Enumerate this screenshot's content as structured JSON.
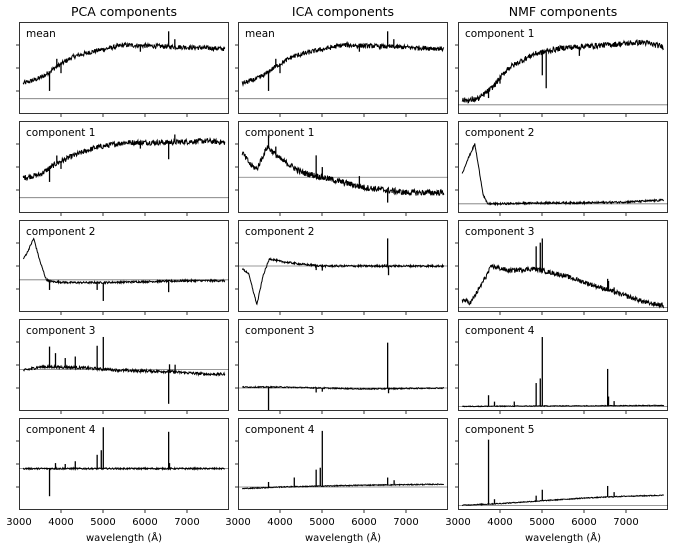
{
  "chart_data": {
    "type": "line",
    "columns": [
      {
        "title": "PCA components",
        "panels": [
          "mean",
          "component 1",
          "component 2",
          "component 3",
          "component 4"
        ]
      },
      {
        "title": "ICA components",
        "panels": [
          "mean",
          "component 1",
          "component 2",
          "component 3",
          "component 4"
        ]
      },
      {
        "title": "NMF components",
        "panels": [
          "component 1",
          "component 2",
          "component 3",
          "component 4",
          "component 5"
        ]
      }
    ],
    "xlabel": "wavelength (Å)",
    "xlim": [
      3000,
      8000
    ],
    "xticks": [
      3000,
      4000,
      5000,
      6000,
      7000
    ],
    "yticklabels_shown": false,
    "grid": false,
    "legend": "none",
    "line_color": "#000000",
    "zero_line_color": "#777777",
    "spectra": [
      [
        {
          "y0": 0,
          "ylim": [
            -0.2,
            1.0
          ],
          "continuum": [
            [
              3000,
              0.18
            ],
            [
              3400,
              0.25
            ],
            [
              3600,
              0.3
            ],
            [
              3900,
              0.42
            ],
            [
              4300,
              0.55
            ],
            [
              4800,
              0.62
            ],
            [
              5500,
              0.7
            ],
            [
              6500,
              0.68
            ],
            [
              7500,
              0.66
            ],
            [
              7900,
              0.65
            ]
          ],
          "lines": [
            [
              3727,
              -0.25
            ],
            [
              3900,
              0.1
            ],
            [
              4000,
              -0.12
            ],
            [
              5890,
              -0.08
            ],
            [
              6563,
              0.2
            ],
            [
              6710,
              0.1
            ]
          ],
          "noise": 0.03
        },
        {
          "y0": 0,
          "ylim": [
            -0.2,
            1.0
          ],
          "continuum": [
            [
              3000,
              0.25
            ],
            [
              3500,
              0.3
            ],
            [
              3900,
              0.45
            ],
            [
              4300,
              0.55
            ],
            [
              4800,
              0.65
            ],
            [
              5500,
              0.72
            ],
            [
              6500,
              0.72
            ],
            [
              7500,
              0.74
            ],
            [
              7900,
              0.72
            ]
          ],
          "lines": [
            [
              3727,
              -0.18
            ],
            [
              3900,
              0.1
            ],
            [
              4000,
              -0.1
            ],
            [
              5890,
              -0.08
            ],
            [
              6563,
              -0.22
            ],
            [
              6710,
              0.1
            ]
          ],
          "noise": 0.035
        },
        {
          "y0": 0,
          "ylim": [
            -0.35,
            0.65
          ],
          "continuum": [
            [
              3000,
              0.15
            ],
            [
              3200,
              0.3
            ],
            [
              3350,
              0.45
            ],
            [
              3500,
              0.2
            ],
            [
              3650,
              0.0
            ],
            [
              3800,
              -0.02
            ],
            [
              4200,
              -0.03
            ],
            [
              5000,
              -0.03
            ],
            [
              6000,
              -0.02
            ],
            [
              7000,
              -0.01
            ],
            [
              7900,
              -0.01
            ]
          ],
          "lines": [
            [
              3727,
              -0.1
            ],
            [
              4861,
              -0.08
            ],
            [
              5007,
              -0.2
            ],
            [
              6563,
              -0.12
            ]
          ],
          "noise": 0.01
        },
        {
          "y0": 0,
          "ylim": [
            -0.45,
            0.55
          ],
          "continuum": [
            [
              3000,
              -0.02
            ],
            [
              3500,
              0.03
            ],
            [
              3800,
              0.03
            ],
            [
              4500,
              0.02
            ],
            [
              5500,
              -0.01
            ],
            [
              6500,
              -0.02
            ],
            [
              7500,
              -0.05
            ],
            [
              7900,
              -0.05
            ]
          ],
          "lines": [
            [
              3727,
              0.22
            ],
            [
              3869,
              0.15
            ],
            [
              4101,
              0.1
            ],
            [
              4340,
              0.12
            ],
            [
              4861,
              0.25
            ],
            [
              5007,
              0.35
            ],
            [
              6563,
              -0.35
            ],
            [
              6584,
              0.08
            ],
            [
              6717,
              0.08
            ]
          ],
          "noise": 0.015
        },
        {
          "y0": 0,
          "ylim": [
            -0.45,
            0.55
          ],
          "continuum": [
            [
              3000,
              0.0
            ],
            [
              7900,
              0.0
            ]
          ],
          "lines": [
            [
              3727,
              -0.3
            ],
            [
              3869,
              0.06
            ],
            [
              4101,
              0.05
            ],
            [
              4340,
              0.08
            ],
            [
              4861,
              0.15
            ],
            [
              4959,
              0.2
            ],
            [
              5007,
              0.45
            ],
            [
              6563,
              0.4
            ],
            [
              6584,
              0.06
            ]
          ],
          "noise": 0.008
        }
      ],
      [
        {
          "y0": 0,
          "ylim": [
            -0.2,
            1.0
          ],
          "continuum": [
            [
              3000,
              0.18
            ],
            [
              3400,
              0.25
            ],
            [
              3600,
              0.3
            ],
            [
              3900,
              0.42
            ],
            [
              4300,
              0.55
            ],
            [
              4800,
              0.62
            ],
            [
              5500,
              0.7
            ],
            [
              6500,
              0.68
            ],
            [
              7500,
              0.66
            ],
            [
              7900,
              0.65
            ]
          ],
          "lines": [
            [
              3727,
              -0.25
            ],
            [
              3900,
              0.1
            ],
            [
              4000,
              -0.12
            ],
            [
              5890,
              -0.08
            ],
            [
              6563,
              0.2
            ],
            [
              6710,
              0.1
            ]
          ],
          "noise": 0.03
        },
        {
          "y0": 0,
          "ylim": [
            -0.35,
            0.55
          ],
          "continuum": [
            [
              3000,
              0.3
            ],
            [
              3300,
              0.12
            ],
            [
              3450,
              0.08
            ],
            [
              3700,
              0.3
            ],
            [
              4000,
              0.18
            ],
            [
              4500,
              0.05
            ],
            [
              5000,
              0.0
            ],
            [
              6000,
              -0.1
            ],
            [
              7000,
              -0.15
            ],
            [
              7900,
              -0.15
            ]
          ],
          "lines": [
            [
              3727,
              0.12
            ],
            [
              3900,
              0.08
            ],
            [
              4861,
              0.2
            ],
            [
              5007,
              0.1
            ],
            [
              5890,
              0.1
            ],
            [
              6563,
              -0.12
            ]
          ],
          "noise": 0.03
        },
        {
          "y0": 0,
          "ylim": [
            -0.5,
            0.5
          ],
          "continuum": [
            [
              3000,
              0.0
            ],
            [
              3250,
              -0.08
            ],
            [
              3450,
              -0.42
            ],
            [
              3600,
              -0.1
            ],
            [
              3750,
              0.08
            ],
            [
              4000,
              0.05
            ],
            [
              4500,
              0.02
            ],
            [
              5000,
              0.0
            ],
            [
              6000,
              0.0
            ],
            [
              7000,
              0.0
            ],
            [
              7900,
              0.0
            ]
          ],
          "lines": [
            [
              4861,
              -0.05
            ],
            [
              5007,
              -0.05
            ],
            [
              6563,
              0.3
            ],
            [
              6584,
              -0.1
            ]
          ],
          "noise": 0.01
        },
        {
          "y0": 0,
          "ylim": [
            -0.25,
            0.75
          ],
          "continuum": [
            [
              3000,
              0.01
            ],
            [
              4000,
              0.01
            ],
            [
              5000,
              0.0
            ],
            [
              6000,
              -0.01
            ],
            [
              7900,
              0.0
            ]
          ],
          "lines": [
            [
              3727,
              -0.25
            ],
            [
              4861,
              -0.05
            ],
            [
              5007,
              -0.04
            ],
            [
              6563,
              0.5
            ],
            [
              6584,
              -0.05
            ]
          ],
          "noise": 0.006
        },
        {
          "y0": 0,
          "ylim": [
            -0.25,
            0.75
          ],
          "continuum": [
            [
              3000,
              -0.02
            ],
            [
              4000,
              0.0
            ],
            [
              5000,
              0.01
            ],
            [
              6000,
              0.02
            ],
            [
              7900,
              0.03
            ]
          ],
          "lines": [
            [
              3727,
              0.06
            ],
            [
              4340,
              0.1
            ],
            [
              4861,
              0.18
            ],
            [
              4959,
              0.2
            ],
            [
              5007,
              0.6
            ],
            [
              6563,
              0.08
            ],
            [
              6717,
              0.05
            ]
          ],
          "noise": 0.005
        }
      ],
      [
        {
          "y0": 0,
          "ylim": [
            -0.1,
            0.9
          ],
          "continuum": [
            [
              3000,
              0.05
            ],
            [
              3300,
              0.05
            ],
            [
              3500,
              0.07
            ],
            [
              3800,
              0.18
            ],
            [
              4200,
              0.4
            ],
            [
              4800,
              0.55
            ],
            [
              5500,
              0.62
            ],
            [
              6500,
              0.65
            ],
            [
              7400,
              0.68
            ],
            [
              7900,
              0.63
            ]
          ],
          "lines": [
            [
              3727,
              -0.08
            ],
            [
              4000,
              -0.06
            ],
            [
              5007,
              -0.25
            ],
            [
              5100,
              -0.4
            ],
            [
              5890,
              -0.1
            ]
          ],
          "noise": 0.03
        },
        {
          "y0": 0,
          "ylim": [
            -0.1,
            0.9
          ],
          "continuum": [
            [
              3000,
              0.2
            ],
            [
              3200,
              0.45
            ],
            [
              3400,
              0.65
            ],
            [
              3600,
              0.1
            ],
            [
              3700,
              0.0
            ],
            [
              4000,
              0.0
            ],
            [
              5000,
              0.01
            ],
            [
              6000,
              0.01
            ],
            [
              7000,
              0.02
            ],
            [
              7900,
              0.04
            ]
          ],
          "lines": [],
          "noise": 0.01
        },
        {
          "y0": 0,
          "ylim": [
            -0.05,
            0.95
          ],
          "continuum": [
            [
              3000,
              0.1
            ],
            [
              3300,
              0.05
            ],
            [
              3500,
              0.2
            ],
            [
              3800,
              0.45
            ],
            [
              4200,
              0.4
            ],
            [
              4800,
              0.42
            ],
            [
              5500,
              0.35
            ],
            [
              6500,
              0.2
            ],
            [
              7500,
              0.05
            ],
            [
              7900,
              0.02
            ]
          ],
          "lines": [
            [
              4861,
              0.25
            ],
            [
              4959,
              0.3
            ],
            [
              5007,
              0.35
            ],
            [
              6563,
              0.12
            ],
            [
              6584,
              0.1
            ],
            [
              6717,
              0.05
            ]
          ],
          "noise": 0.025
        },
        {
          "y0": 0,
          "ylim": [
            -0.05,
            0.95
          ],
          "continuum": [
            [
              3000,
              0.0
            ],
            [
              7900,
              0.01
            ]
          ],
          "lines": [
            [
              3727,
              0.12
            ],
            [
              3869,
              0.05
            ],
            [
              4340,
              0.05
            ],
            [
              4861,
              0.25
            ],
            [
              4959,
              0.3
            ],
            [
              5007,
              0.75
            ],
            [
              6563,
              0.4
            ],
            [
              6584,
              0.1
            ],
            [
              6717,
              0.05
            ]
          ],
          "noise": 0.004
        },
        {
          "y0": 0,
          "ylim": [
            -0.05,
            0.95
          ],
          "continuum": [
            [
              3000,
              0.0
            ],
            [
              4000,
              0.02
            ],
            [
              5000,
              0.05
            ],
            [
              6000,
              0.08
            ],
            [
              7000,
              0.1
            ],
            [
              7900,
              0.11
            ]
          ],
          "lines": [
            [
              3727,
              0.7
            ],
            [
              3869,
              0.05
            ],
            [
              4861,
              0.06
            ],
            [
              5007,
              0.12
            ],
            [
              6563,
              0.12
            ],
            [
              6717,
              0.05
            ]
          ],
          "noise": 0.005
        }
      ]
    ]
  }
}
